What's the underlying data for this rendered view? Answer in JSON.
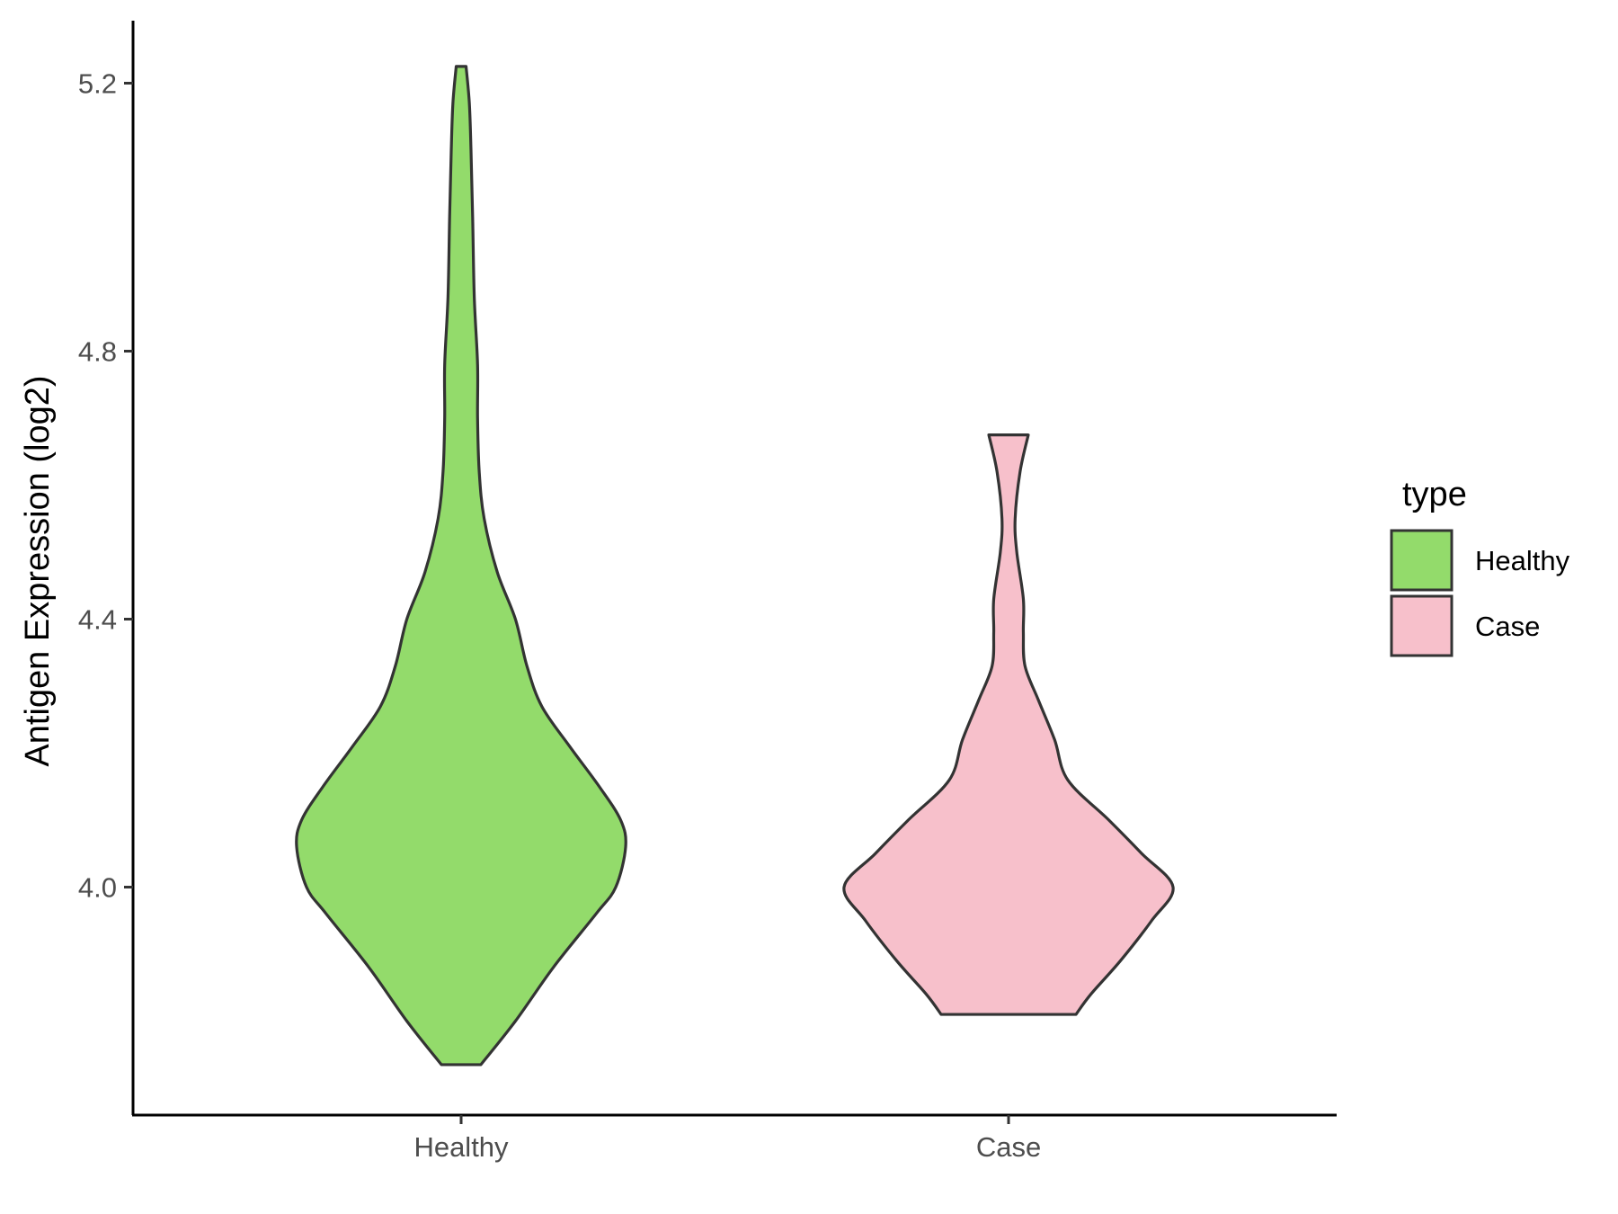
{
  "chart_data": {
    "type": "violin",
    "title": "",
    "xlabel": "",
    "ylabel": "Antigen Expression (log2)",
    "categories": [
      "Healthy",
      "Case"
    ],
    "yticks": [
      "4.0",
      "4.4",
      "4.8",
      "5.2"
    ],
    "ytick_values": [
      4.0,
      4.4,
      4.8,
      5.2
    ],
    "ylim": [
      3.66,
      5.3
    ],
    "legend": {
      "title": "type",
      "position": "right",
      "entries": [
        "Healthy",
        "Case"
      ]
    },
    "series": [
      {
        "name": "Healthy",
        "color": "#93DB6B",
        "min": 3.735,
        "max": 5.225,
        "density_profile": [
          [
            3.735,
            0.12
          ],
          [
            3.8,
            0.33
          ],
          [
            3.88,
            0.56
          ],
          [
            3.96,
            0.82
          ],
          [
            4.0,
            0.94
          ],
          [
            4.06,
            1.0
          ],
          [
            4.1,
            0.97
          ],
          [
            4.15,
            0.84
          ],
          [
            4.21,
            0.66
          ],
          [
            4.27,
            0.49
          ],
          [
            4.33,
            0.4
          ],
          [
            4.4,
            0.33
          ],
          [
            4.47,
            0.22
          ],
          [
            4.55,
            0.14
          ],
          [
            4.62,
            0.11
          ],
          [
            4.7,
            0.1
          ],
          [
            4.78,
            0.1
          ],
          [
            4.88,
            0.08
          ],
          [
            5.0,
            0.07
          ],
          [
            5.1,
            0.06
          ],
          [
            5.17,
            0.05
          ],
          [
            5.225,
            0.03
          ]
        ]
      },
      {
        "name": "Case",
        "color": "#F7C0CB",
        "min": 3.81,
        "max": 4.675,
        "density_profile": [
          [
            3.81,
            0.41
          ],
          [
            3.84,
            0.5
          ],
          [
            3.89,
            0.68
          ],
          [
            3.95,
            0.87
          ],
          [
            4.0,
            1.0
          ],
          [
            4.05,
            0.81
          ],
          [
            4.1,
            0.61
          ],
          [
            4.16,
            0.36
          ],
          [
            4.22,
            0.28
          ],
          [
            4.28,
            0.18
          ],
          [
            4.33,
            0.1
          ],
          [
            4.38,
            0.09
          ],
          [
            4.43,
            0.09
          ],
          [
            4.5,
            0.05
          ],
          [
            4.55,
            0.04
          ],
          [
            4.62,
            0.07
          ],
          [
            4.675,
            0.12
          ]
        ]
      }
    ]
  }
}
